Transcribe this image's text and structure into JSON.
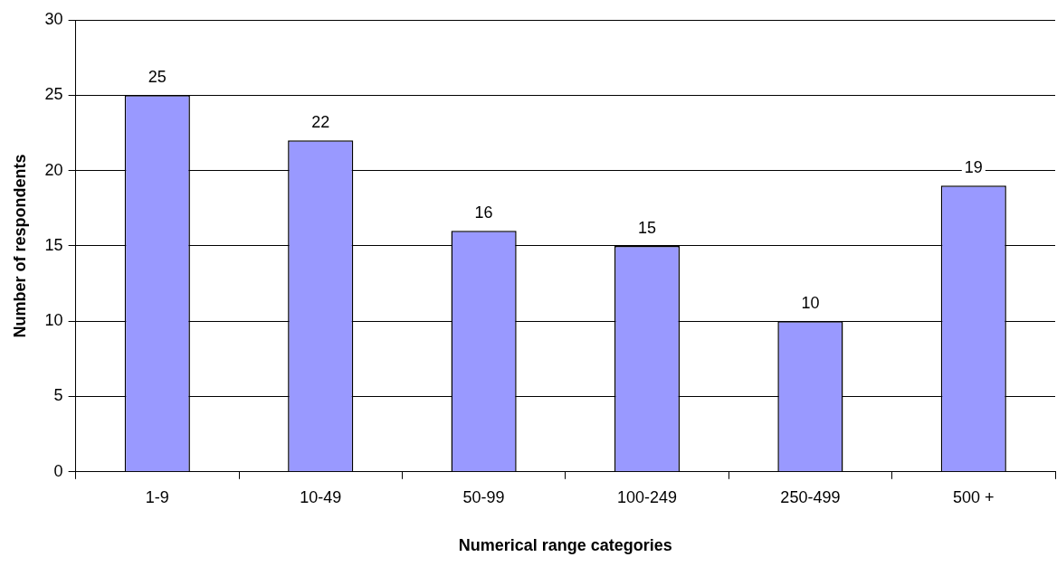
{
  "chart_data": {
    "type": "bar",
    "xlabel": "Numerical range categories",
    "ylabel": "Number of respondents",
    "categories": [
      "1-9",
      "10-49",
      "50-99",
      "100-249",
      "250-499",
      "500 +"
    ],
    "values": [
      25,
      22,
      16,
      15,
      10,
      19
    ],
    "color": "#9999ff",
    "ylim": [
      0,
      30
    ],
    "yticks": [
      0,
      5,
      10,
      15,
      20,
      25,
      30
    ],
    "grid": "y",
    "data_labels": true,
    "legend": false
  }
}
